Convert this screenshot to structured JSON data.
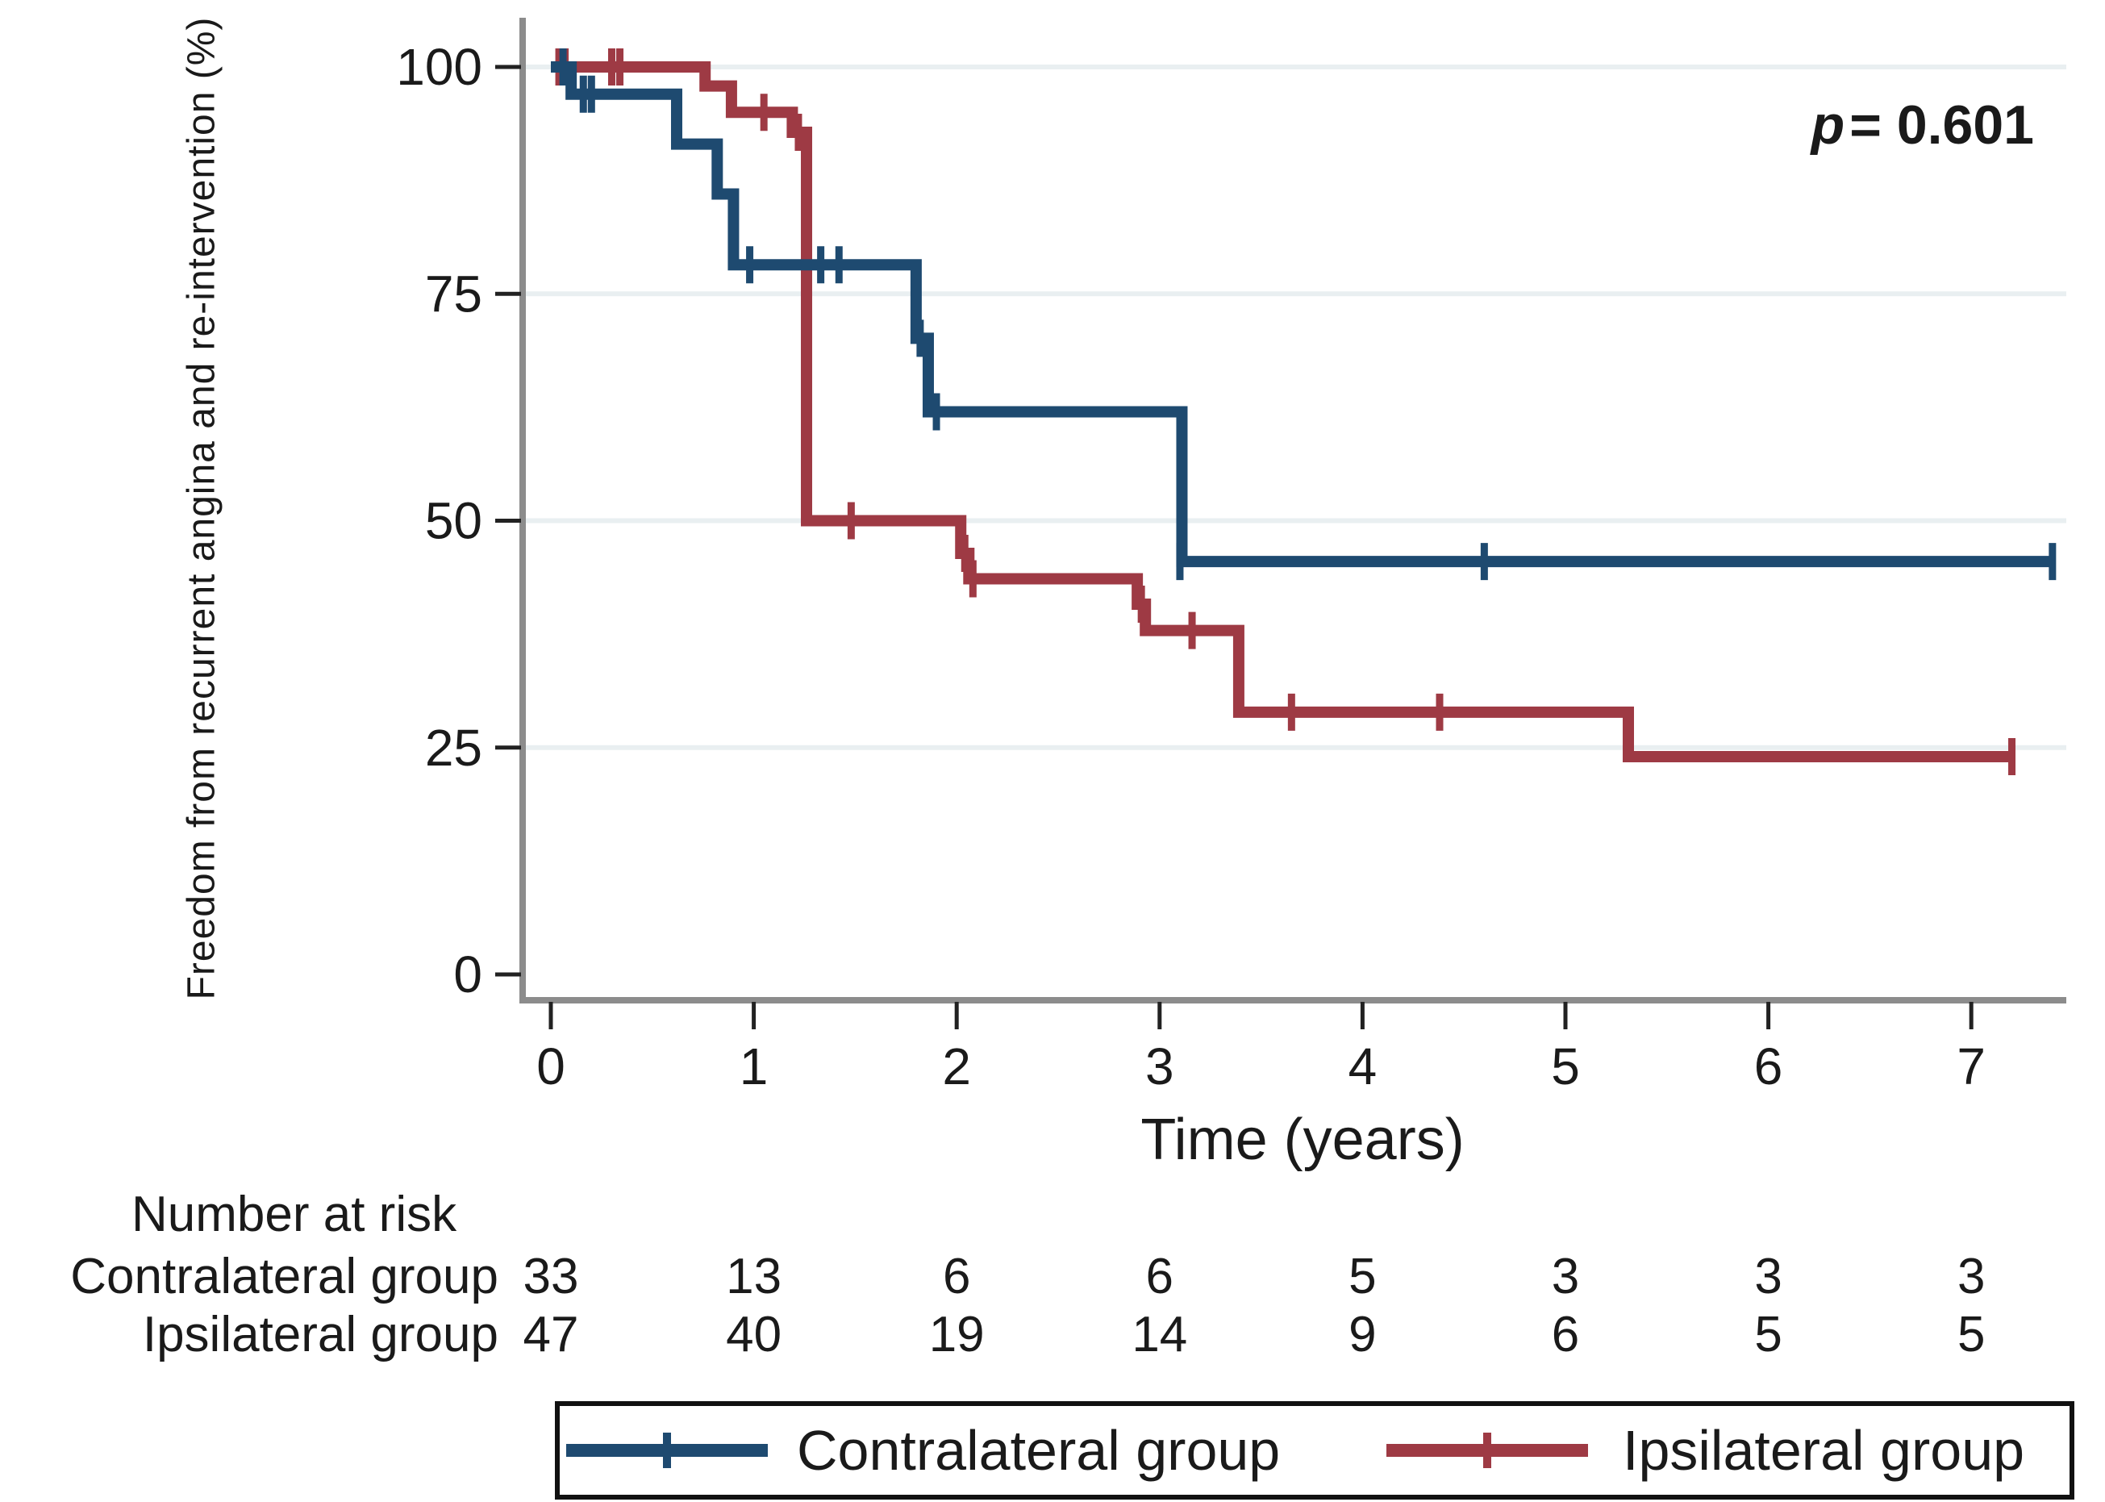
{
  "annotation": {
    "symbol": "p",
    "text": "= 0.601"
  },
  "chart_data": {
    "type": "line",
    "subtype": "kaplan-meier-step",
    "title": "",
    "xlabel": "Time (years)",
    "ylabel": "Freedom from recurrent angina and re-intervention (%)",
    "xlim": [
      0,
      7.5
    ],
    "ylim": [
      0,
      100
    ],
    "x_ticks": [
      0,
      1,
      2,
      3,
      4,
      5,
      6,
      7
    ],
    "y_ticks": [
      0,
      25,
      50,
      75,
      100
    ],
    "grid": "horizontal-only",
    "gridline_levels": [
      25,
      50,
      75,
      100
    ],
    "legend_position": "bottom",
    "p_value_text": "p = 0.601",
    "series": [
      {
        "name": "Contralateral group",
        "color": "#1e4a70",
        "steps": [
          [
            0,
            100
          ],
          [
            0.1,
            97.0
          ],
          [
            0.62,
            91.5
          ],
          [
            0.82,
            86.0
          ],
          [
            0.9,
            78.2
          ],
          [
            1.8,
            70.1
          ],
          [
            1.86,
            62.0
          ],
          [
            3.11,
            45.5
          ]
        ],
        "end_time": 7.4,
        "censor_marks": [
          [
            0.06,
            100
          ],
          [
            0.16,
            97.0
          ],
          [
            0.2,
            97.0
          ],
          [
            0.98,
            78.2
          ],
          [
            1.33,
            78.2
          ],
          [
            1.42,
            78.2
          ],
          [
            1.82,
            70.1
          ],
          [
            1.9,
            62.0
          ],
          [
            3.1,
            45.5
          ],
          [
            4.6,
            45.5
          ],
          [
            7.4,
            45.5
          ]
        ]
      },
      {
        "name": "Ipsilateral group",
        "color": "#9e3a44",
        "steps": [
          [
            0,
            100
          ],
          [
            0.76,
            97.9
          ],
          [
            0.89,
            95.0
          ],
          [
            1.19,
            92.8
          ],
          [
            1.26,
            50.0
          ],
          [
            2.02,
            46.4
          ],
          [
            2.06,
            43.6
          ],
          [
            2.89,
            40.8
          ],
          [
            2.93,
            37.9
          ],
          [
            3.39,
            28.9
          ],
          [
            5.31,
            24.0
          ]
        ],
        "end_time": 7.2,
        "censor_marks": [
          [
            0.04,
            100
          ],
          [
            0.07,
            100
          ],
          [
            0.3,
            100
          ],
          [
            0.34,
            100
          ],
          [
            1.05,
            95.0
          ],
          [
            1.22,
            92.8
          ],
          [
            1.48,
            50.0
          ],
          [
            2.04,
            46.4
          ],
          [
            2.08,
            43.6
          ],
          [
            2.91,
            40.8
          ],
          [
            3.16,
            37.9
          ],
          [
            3.65,
            28.9
          ],
          [
            4.38,
            28.9
          ],
          [
            7.2,
            24.0
          ]
        ]
      }
    ],
    "risk_table": {
      "title": "Number at risk",
      "times": [
        0,
        1,
        2,
        3,
        4,
        5,
        6,
        7
      ],
      "rows": [
        {
          "label": "Contralateral group",
          "values": [
            33,
            13,
            6,
            6,
            5,
            3,
            3,
            3
          ]
        },
        {
          "label": "Ipsilateral group",
          "values": [
            47,
            40,
            19,
            14,
            9,
            6,
            5,
            5
          ]
        }
      ]
    }
  },
  "legend": {
    "items": [
      {
        "label": "Contralateral group",
        "color": "#1e4a70"
      },
      {
        "label": "Ipsilateral group",
        "color": "#9e3a44"
      }
    ]
  },
  "style_colors": {
    "gridline": "#e9eff1",
    "axis_line": "#8c8c8c",
    "tick_mark": "#222222",
    "text": "#1a1a1a"
  }
}
